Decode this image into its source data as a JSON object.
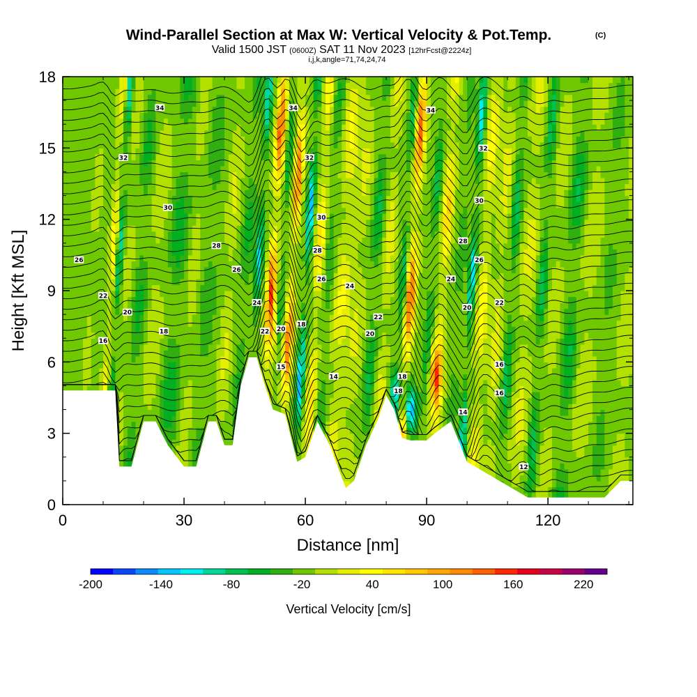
{
  "title": {
    "main": "Wind-Parallel Section at Max W: Vertical Velocity & Pot.Temp.",
    "copyright": "(C)",
    "valid_prefix": "Valid 1500 JST",
    "valid_utc": "(0600Z)",
    "valid_date": "SAT 11 Nov 2023",
    "forecast": "[12hrFcst@2224z]",
    "indices": "i,j,k,angle=71,74,24,74"
  },
  "chart_data": {
    "type": "heatmap",
    "xlabel": "Distance [nm]",
    "ylabel": "Height [Kft MSL]",
    "xlim": [
      0,
      141
    ],
    "ylim": [
      0,
      18
    ],
    "xticks": [
      0,
      30,
      60,
      90,
      120
    ],
    "xtick_labels": [
      "0",
      "30",
      "60",
      "90",
      "120"
    ],
    "yticks": [
      0,
      3,
      6,
      9,
      12,
      15,
      18
    ],
    "ytick_labels": [
      "0",
      "3",
      "6",
      "9",
      "12",
      "15",
      "18"
    ],
    "terrain": {
      "x": [
        0,
        10,
        13,
        14,
        17,
        20,
        23,
        26,
        30,
        33,
        36,
        38,
        40,
        42,
        44,
        46,
        48,
        50,
        52,
        55,
        58,
        60,
        63,
        66,
        70,
        72,
        75,
        78,
        80,
        82,
        84,
        86,
        88,
        90,
        92,
        96,
        100,
        103,
        106,
        110,
        115,
        118,
        120,
        122,
        126,
        130,
        134,
        138,
        141
      ],
      "height_kft": [
        4.8,
        4.8,
        4.8,
        1.6,
        1.6,
        3.5,
        3.5,
        2.5,
        1.6,
        1.6,
        3.5,
        3.5,
        2.5,
        2.5,
        5.0,
        6.2,
        6.2,
        5.0,
        4.0,
        3.8,
        1.8,
        2.0,
        3.5,
        2.5,
        0.7,
        1.0,
        2.5,
        3.6,
        4.6,
        4.0,
        2.8,
        2.7,
        2.7,
        2.7,
        3.0,
        3.5,
        1.8,
        1.5,
        1.2,
        0.8,
        0.3,
        0.3,
        0.3,
        0.3,
        0.3,
        0.3,
        0.3,
        1.0,
        1.0
      ]
    },
    "theta_contours": {
      "unit": "degC",
      "labels": [
        {
          "text": "34",
          "x": 24,
          "y": 16.7
        },
        {
          "text": "34",
          "x": 57,
          "y": 16.7
        },
        {
          "text": "34",
          "x": 91,
          "y": 16.6
        },
        {
          "text": "32",
          "x": 15,
          "y": 14.6
        },
        {
          "text": "32",
          "x": 61,
          "y": 14.6
        },
        {
          "text": "32",
          "x": 104,
          "y": 15.0
        },
        {
          "text": "30",
          "x": 26,
          "y": 12.5
        },
        {
          "text": "30",
          "x": 64,
          "y": 12.1
        },
        {
          "text": "30",
          "x": 103,
          "y": 12.8
        },
        {
          "text": "28",
          "x": 38,
          "y": 10.9
        },
        {
          "text": "28",
          "x": 63,
          "y": 10.7
        },
        {
          "text": "28",
          "x": 99,
          "y": 11.1
        },
        {
          "text": "26",
          "x": 4,
          "y": 10.3
        },
        {
          "text": "26",
          "x": 43,
          "y": 9.9
        },
        {
          "text": "26",
          "x": 64,
          "y": 9.5
        },
        {
          "text": "26",
          "x": 103,
          "y": 10.3
        },
        {
          "text": "24",
          "x": 71,
          "y": 9.2
        },
        {
          "text": "24",
          "x": 48,
          "y": 8.5
        },
        {
          "text": "24",
          "x": 96,
          "y": 9.5
        },
        {
          "text": "22",
          "x": 10,
          "y": 8.8
        },
        {
          "text": "22",
          "x": 78,
          "y": 7.9
        },
        {
          "text": "22",
          "x": 108,
          "y": 8.5
        },
        {
          "text": "22",
          "x": 50,
          "y": 7.3
        },
        {
          "text": "20",
          "x": 16,
          "y": 8.1
        },
        {
          "text": "20",
          "x": 54,
          "y": 7.4
        },
        {
          "text": "20",
          "x": 76,
          "y": 7.2
        },
        {
          "text": "20",
          "x": 100,
          "y": 8.3
        },
        {
          "text": "18",
          "x": 25,
          "y": 7.3
        },
        {
          "text": "18",
          "x": 59,
          "y": 7.6
        },
        {
          "text": "18",
          "x": 84,
          "y": 5.4
        },
        {
          "text": "18",
          "x": 83,
          "y": 4.8
        },
        {
          "text": "16",
          "x": 10,
          "y": 6.9
        },
        {
          "text": "16",
          "x": 108,
          "y": 5.9
        },
        {
          "text": "16",
          "x": 108,
          "y": 4.7
        },
        {
          "text": "15",
          "x": 54,
          "y": 5.8
        },
        {
          "text": "14",
          "x": 67,
          "y": 5.4
        },
        {
          "text": "14",
          "x": 99,
          "y": 3.9
        },
        {
          "text": "12",
          "x": 114,
          "y": 1.6
        }
      ]
    },
    "w_field": {
      "unit": "cm/s",
      "background": -5,
      "bands": [
        {
          "x": 2,
          "w": 2.0,
          "amp": -15
        },
        {
          "x": 6,
          "w": 1.5,
          "amp": 10
        },
        {
          "x": 11,
          "w": 1.0,
          "amp": 60
        },
        {
          "x": 12.5,
          "w": 0.8,
          "amp": -100
        },
        {
          "x": 15,
          "w": 2.0,
          "amp": 15
        },
        {
          "x": 18,
          "w": 1.8,
          "amp": -45
        },
        {
          "x": 22,
          "w": 2.0,
          "amp": 25
        },
        {
          "x": 27,
          "w": 2.2,
          "amp": -55
        },
        {
          "x": 31,
          "w": 1.5,
          "amp": 20
        },
        {
          "x": 35,
          "w": 2.0,
          "amp": -35
        },
        {
          "x": 40,
          "w": 1.5,
          "amp": 30
        },
        {
          "x": 44,
          "w": 1.5,
          "amp": -45
        },
        {
          "x": 47,
          "w": 1.0,
          "amp": -100
        },
        {
          "x": 50.5,
          "w": 1.1,
          "amp": 165
        },
        {
          "x": 53,
          "w": 0.8,
          "amp": -60
        },
        {
          "x": 55.5,
          "w": 1.0,
          "amp": 150
        },
        {
          "x": 59,
          "w": 0.9,
          "amp": -130
        },
        {
          "x": 62,
          "w": 1.2,
          "amp": 80
        },
        {
          "x": 64.5,
          "w": 1.5,
          "amp": -40
        },
        {
          "x": 68,
          "w": 2.0,
          "amp": 50
        },
        {
          "x": 72,
          "w": 2.0,
          "amp": 30
        },
        {
          "x": 76,
          "w": 1.5,
          "amp": -60
        },
        {
          "x": 79,
          "w": 1.6,
          "amp": 40
        },
        {
          "x": 85,
          "w": 1.2,
          "amp": 160
        },
        {
          "x": 83,
          "w": 1.0,
          "amp": -70
        },
        {
          "x": 90,
          "w": 1.0,
          "amp": -60
        },
        {
          "x": 93,
          "w": 1.2,
          "amp": 90
        },
        {
          "x": 97,
          "w": 1.4,
          "amp": -30
        },
        {
          "x": 100,
          "w": 0.9,
          "amp": -110
        },
        {
          "x": 103,
          "w": 1.4,
          "amp": 60
        },
        {
          "x": 107,
          "w": 1.5,
          "amp": 40
        },
        {
          "x": 110,
          "w": 1.2,
          "amp": -70
        },
        {
          "x": 114,
          "w": 2.0,
          "amp": 35
        },
        {
          "x": 117.5,
          "w": 1.2,
          "amp": -70
        },
        {
          "x": 121,
          "w": 2.0,
          "amp": 20
        },
        {
          "x": 125,
          "w": 2.0,
          "amp": -60
        },
        {
          "x": 129,
          "w": 2.5,
          "amp": 25
        },
        {
          "x": 134,
          "w": 2.0,
          "amp": -25
        },
        {
          "x": 139,
          "w": 2.0,
          "amp": 20
        }
      ],
      "blobs": [
        {
          "x": 52.5,
          "y": 7.0,
          "sx": 1.5,
          "sy": 1.5,
          "amp": 40
        },
        {
          "x": 86,
          "y": 4.0,
          "sx": 1.5,
          "sy": 1.0,
          "amp": -140
        },
        {
          "x": 82,
          "y": 4.8,
          "sx": 1.2,
          "sy": 0.9,
          "amp": -90
        },
        {
          "x": 92,
          "y": 5.5,
          "sx": 1.5,
          "sy": 1.2,
          "amp": 100
        }
      ]
    },
    "colorbar": {
      "levels": [
        -200,
        -180,
        -160,
        -140,
        -120,
        -100,
        -80,
        -60,
        -40,
        -20,
        0,
        20,
        40,
        60,
        80,
        100,
        120,
        140,
        160,
        180,
        200,
        220,
        240
      ],
      "colors": [
        "#0000ff",
        "#0a46fe",
        "#0a8cfe",
        "#00c8ff",
        "#00f0f0",
        "#00d79b",
        "#00c050",
        "#00b020",
        "#30b010",
        "#70c800",
        "#b4e000",
        "#e6ee00",
        "#ffff00",
        "#ffe400",
        "#ffc800",
        "#ffa800",
        "#ff8c00",
        "#ff5f00",
        "#ff2800",
        "#e6001e",
        "#c80046",
        "#9b006e",
        "#64008c"
      ],
      "tick_values": [
        -200,
        -140,
        -80,
        -20,
        40,
        100,
        160,
        220
      ],
      "tick_labels": [
        "-200",
        "-140",
        "-80",
        "-20",
        "40",
        "100",
        "160",
        "220"
      ],
      "label": "Vertical Velocity [cm/s]"
    }
  }
}
